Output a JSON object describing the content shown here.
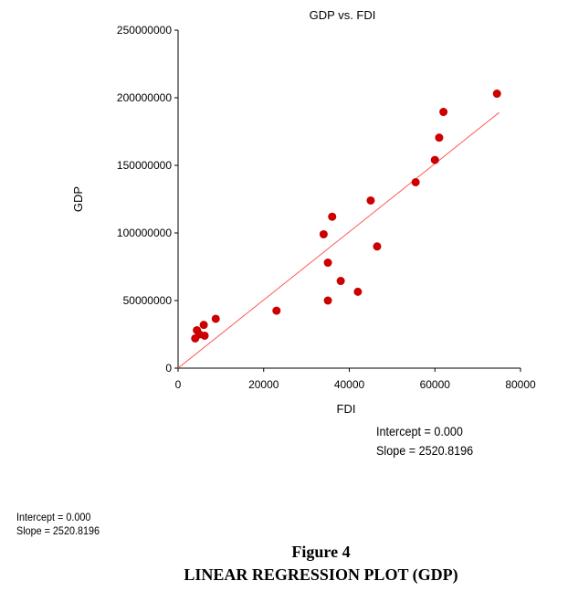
{
  "chart_data": {
    "type": "scatter",
    "title": "GDP vs. FDI",
    "xlabel": "FDI",
    "ylabel": "GDP",
    "xlim": [
      0,
      80000
    ],
    "ylim": [
      0,
      250000000
    ],
    "x_ticks": [
      "0",
      "20000",
      "40000",
      "60000",
      "80000"
    ],
    "y_ticks": [
      "0",
      "50000000",
      "100000000",
      "150000000",
      "200000000",
      "250000000"
    ],
    "grid": false,
    "legend": "none",
    "point_color": "#cc0000",
    "line_color": "#ff5555",
    "points": [
      {
        "x": 4000,
        "y": 22000000
      },
      {
        "x": 4400,
        "y": 28000000
      },
      {
        "x": 5000,
        "y": 25000000
      },
      {
        "x": 6200,
        "y": 24000000
      },
      {
        "x": 6000,
        "y": 32000000
      },
      {
        "x": 8800,
        "y": 36500000
      },
      {
        "x": 23000,
        "y": 42500000
      },
      {
        "x": 34000,
        "y": 99000000
      },
      {
        "x": 35000,
        "y": 78000000
      },
      {
        "x": 35000,
        "y": 50000000
      },
      {
        "x": 36000,
        "y": 112000000
      },
      {
        "x": 38000,
        "y": 64500000
      },
      {
        "x": 42000,
        "y": 56500000
      },
      {
        "x": 45000,
        "y": 124000000
      },
      {
        "x": 46500,
        "y": 90000000
      },
      {
        "x": 55500,
        "y": 137500000
      },
      {
        "x": 60000,
        "y": 154000000
      },
      {
        "x": 61000,
        "y": 170500000
      },
      {
        "x": 62000,
        "y": 189500000
      },
      {
        "x": 74500,
        "y": 203000000
      }
    ],
    "regression": {
      "intercept": 0,
      "slope": 2520.8196,
      "x_range": [
        0,
        80000
      ]
    }
  },
  "stats_box": {
    "intercept": "Intercept = 0.000",
    "slope": "Slope = 2520.8196"
  },
  "stats_small": {
    "intercept": "Intercept = 0.000",
    "slope": "Slope = 2520.8196"
  },
  "figure": {
    "number": "Figure 4",
    "caption": "LINEAR REGRESSION PLOT (GDP)"
  }
}
